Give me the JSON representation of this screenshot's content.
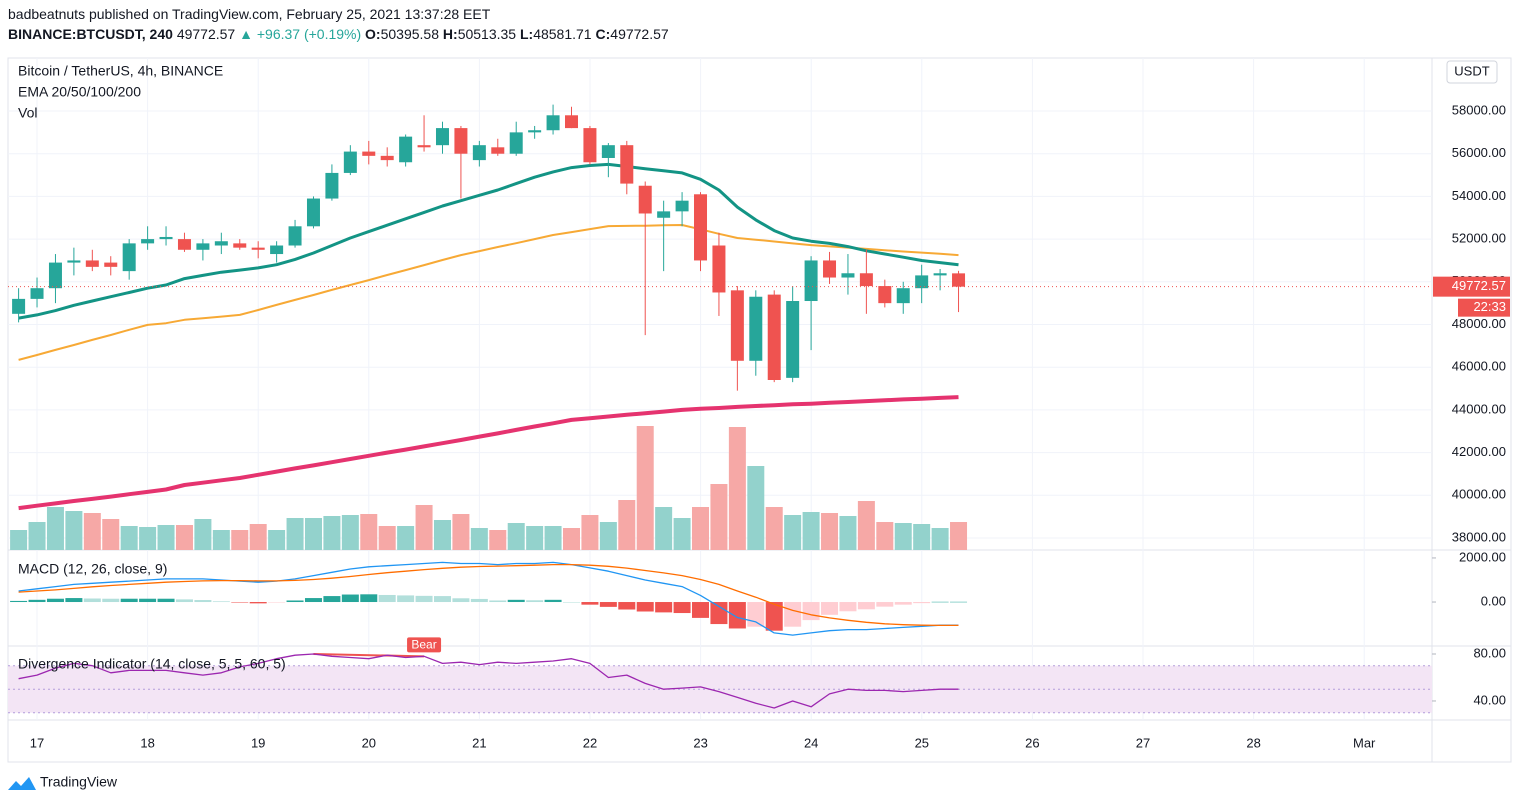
{
  "header": {
    "publisher": "badbeatnuts published on TradingView.com, February 25, 2021 13:37:28 EET",
    "symbol": "BINANCE:BTCUSDT, 240",
    "change": "▲ +96.37 (+0.19%)",
    "ohlc_labels": [
      "O:",
      "H:",
      "L:",
      "C:"
    ]
  },
  "footer": {
    "brand": "TradingView"
  },
  "chart_data": [
    {
      "type": "candlestick",
      "title": "Bitcoin / TetherUS, 4h, BINANCE",
      "indicator_label": "EMA 20/50/100/200",
      "volume_label": "Vol",
      "currency": "USDT",
      "countdown": "22:33",
      "up_color": "#26a69a",
      "down_color": "#ef5350",
      "ohlc": [
        [
          48500,
          49700,
          48100,
          49200
        ],
        [
          49200,
          50200,
          48800,
          49700
        ],
        [
          49700,
          51300,
          49000,
          50900
        ],
        [
          50900,
          51600,
          50300,
          51000
        ],
        [
          51000,
          51500,
          50500,
          50700
        ],
        [
          50900,
          51200,
          50300,
          50700
        ],
        [
          50500,
          52000,
          50100,
          51800
        ],
        [
          51800,
          52600,
          51500,
          52000
        ],
        [
          52000,
          52600,
          51700,
          52100
        ],
        [
          52000,
          52300,
          51400,
          51500
        ],
        [
          51500,
          52000,
          51000,
          51800
        ],
        [
          51700,
          52300,
          51300,
          51900
        ],
        [
          51800,
          52000,
          51500,
          51600
        ],
        [
          51600,
          51900,
          51100,
          51500
        ],
        [
          51300,
          51900,
          50900,
          51700
        ],
        [
          51700,
          52900,
          51600,
          52600
        ],
        [
          52600,
          54000,
          52500,
          53900
        ],
        [
          53900,
          55500,
          53800,
          55100
        ],
        [
          55100,
          56400,
          55000,
          56100
        ],
        [
          56100,
          56600,
          55500,
          55900
        ],
        [
          55900,
          56300,
          55400,
          55700
        ],
        [
          55600,
          56900,
          55400,
          56800
        ],
        [
          56400,
          57800,
          56100,
          56300
        ],
        [
          56400,
          57500,
          56000,
          57200
        ],
        [
          57200,
          57300,
          53900,
          56000
        ],
        [
          55700,
          56600,
          55400,
          56400
        ],
        [
          56300,
          56700,
          55900,
          56000
        ],
        [
          56000,
          57500,
          55900,
          57000
        ],
        [
          57000,
          57300,
          56700,
          57100
        ],
        [
          57100,
          58300,
          56900,
          57800
        ],
        [
          57800,
          58200,
          57200,
          57200
        ],
        [
          57200,
          57300,
          55500,
          55600
        ],
        [
          55800,
          56500,
          54900,
          56400
        ],
        [
          56400,
          56600,
          54100,
          54600
        ],
        [
          54500,
          54700,
          47500,
          53200
        ],
        [
          53000,
          53800,
          50500,
          53300
        ],
        [
          53300,
          54200,
          52600,
          53800
        ],
        [
          54100,
          54200,
          50500,
          51000
        ],
        [
          51700,
          52300,
          48400,
          49500
        ],
        [
          49600,
          49800,
          44900,
          46300
        ],
        [
          46300,
          49600,
          45600,
          49300
        ],
        [
          49400,
          49600,
          45300,
          45400
        ],
        [
          45500,
          49800,
          45300,
          49100
        ],
        [
          49100,
          51200,
          46800,
          51000
        ],
        [
          51000,
          51400,
          49900,
          50200
        ],
        [
          50200,
          51300,
          49400,
          50400
        ],
        [
          50400,
          51500,
          48500,
          49800
        ],
        [
          49800,
          50100,
          48800,
          49000
        ],
        [
          49000,
          50000,
          48500,
          49700
        ],
        [
          49700,
          50800,
          49000,
          50300
        ],
        [
          50300,
          50600,
          49600,
          50400
        ],
        [
          50395.58,
          50513.35,
          48581.71,
          49772.57
        ]
      ],
      "series": [
        {
          "color": "#e5336f",
          "width": 4,
          "values": [
            39400,
            39510,
            39620,
            39730,
            39830,
            39940,
            40050,
            40160,
            40270,
            40480,
            40590,
            40700,
            40810,
            40960,
            41110,
            41260,
            41400,
            41550,
            41700,
            41850,
            42000,
            42140,
            42290,
            42440,
            42590,
            42750,
            42900,
            43060,
            43220,
            43370,
            43530,
            43610,
            43690,
            43770,
            43840,
            43920,
            44000,
            44050,
            44090,
            44140,
            44180,
            44220,
            44260,
            44290,
            44330,
            44370,
            44410,
            44450,
            44490,
            44520,
            44560,
            44600
          ]
        },
        {
          "color": "#f7a935",
          "width": 2,
          "values": [
            46340,
            46570,
            46810,
            47040,
            47280,
            47510,
            47750,
            47980,
            48060,
            48220,
            48290,
            48370,
            48450,
            48680,
            48920,
            49150,
            49380,
            49620,
            49850,
            50080,
            50320,
            50550,
            50780,
            51020,
            51250,
            51440,
            51630,
            51810,
            52000,
            52190,
            52330,
            52470,
            52610,
            52620,
            52630,
            52650,
            52660,
            52460,
            52250,
            52050,
            51970,
            51890,
            51800,
            51720,
            51660,
            51600,
            51540,
            51480,
            51420,
            51370,
            51310,
            51250
          ]
        },
        {
          "color": "#139485",
          "width": 3,
          "values": [
            48300,
            48450,
            48650,
            48900,
            49100,
            49300,
            49500,
            49700,
            49850,
            50150,
            50300,
            50450,
            50550,
            50650,
            50800,
            51050,
            51350,
            51700,
            52050,
            52350,
            52650,
            52950,
            53250,
            53550,
            53800,
            54050,
            54300,
            54600,
            54900,
            55150,
            55350,
            55450,
            55500,
            55400,
            55300,
            55200,
            55100,
            54800,
            54300,
            53500,
            52900,
            52400,
            52050,
            51900,
            51800,
            51650,
            51450,
            51300,
            51150,
            51000,
            50900,
            50800
          ]
        }
      ],
      "volume": {
        "up_color": "#93d2cc",
        "down_color": "#f6a8a6",
        "vlim": [
          0,
          12.8
        ],
        "values": [
          2.0,
          2.8,
          4.3,
          3.9,
          3.7,
          3.1,
          2.4,
          2.3,
          2.5,
          2.5,
          3.1,
          2.0,
          2.0,
          2.6,
          2.0,
          3.2,
          3.2,
          3.4,
          3.5,
          3.6,
          2.4,
          2.4,
          4.5,
          3.0,
          3.6,
          2.2,
          2.0,
          2.7,
          2.4,
          2.4,
          2.2,
          3.5,
          2.8,
          5.0,
          12.4,
          4.3,
          3.2,
          4.3,
          6.6,
          12.3,
          8.4,
          4.3,
          3.5,
          3.8,
          3.7,
          3.4,
          4.9,
          2.8,
          2.7,
          2.6,
          2.2,
          2.8
        ]
      },
      "ylim": [
        37530,
        60390
      ],
      "yticks": [
        {
          "value": 38000,
          "label": "38000.00"
        },
        {
          "value": 40000,
          "label": "40000.00"
        },
        {
          "value": 42000,
          "label": "42000.00"
        },
        {
          "value": 44000,
          "label": "44000.00"
        },
        {
          "value": 46000,
          "label": "46000.00"
        },
        {
          "value": 48000,
          "label": "48000.00"
        },
        {
          "value": 50000,
          "label": "50000.00"
        },
        {
          "value": 52000,
          "label": "52000.00"
        },
        {
          "value": 54000,
          "label": "54000.00"
        },
        {
          "value": 56000,
          "label": "56000.00"
        },
        {
          "value": 58000,
          "label": "58000.00"
        }
      ],
      "grid": true,
      "time_labels": [
        "17",
        "18",
        "19",
        "20",
        "21",
        "22",
        "23",
        "24",
        "25",
        "26",
        "27",
        "28",
        "Mar"
      ]
    },
    {
      "type": "macd",
      "title": "MACD (12, 26, close, 9)",
      "series": [
        {
          "color": "#2196f3",
          "values": [
            500,
            600,
            700,
            800,
            850,
            900,
            950,
            1000,
            1050,
            1050,
            1050,
            1000,
            950,
            900,
            950,
            1050,
            1200,
            1350,
            1500,
            1600,
            1650,
            1700,
            1750,
            1800,
            1750,
            1750,
            1700,
            1750,
            1750,
            1800,
            1700,
            1550,
            1400,
            1200,
            1000,
            850,
            700,
            300,
            -200,
            -700,
            -900,
            -1400,
            -1500,
            -1400,
            -1300,
            -1250,
            -1250,
            -1200,
            -1150,
            -1100,
            -1050,
            -1050
          ]
        },
        {
          "color": "#ff6d00",
          "values": [
            450,
            500,
            550,
            620,
            690,
            750,
            800,
            850,
            900,
            930,
            960,
            970,
            970,
            960,
            960,
            980,
            1020,
            1080,
            1160,
            1250,
            1330,
            1400,
            1470,
            1530,
            1580,
            1610,
            1630,
            1650,
            1670,
            1700,
            1700,
            1670,
            1620,
            1540,
            1430,
            1320,
            1200,
            1020,
            800,
            500,
            220,
            -100,
            -380,
            -580,
            -720,
            -830,
            -920,
            -990,
            -1030,
            -1050,
            -1060,
            -1060
          ]
        }
      ],
      "histogram": {
        "colors": [
          "#26a69a",
          "#b2dfdb",
          "#ffcdd2",
          "#ef5350"
        ],
        "values": [
          50,
          100,
          150,
          180,
          160,
          150,
          150,
          150,
          150,
          120,
          90,
          30,
          -20,
          -60,
          -10,
          70,
          180,
          270,
          340,
          350,
          320,
          300,
          280,
          270,
          170,
          140,
          70,
          100,
          80,
          100,
          0,
          -120,
          -220,
          -340,
          -430,
          -470,
          -500,
          -720,
          -1000,
          -1200,
          -1120,
          -1300,
          -1120,
          -820,
          -580,
          -420,
          -330,
          -210,
          -120,
          -50,
          10,
          10
        ]
      },
      "ylim": [
        -1950,
        2270
      ],
      "yticks": [
        {
          "value": 2000,
          "label": "2000.00"
        },
        {
          "value": 0,
          "label": "0.00"
        }
      ]
    },
    {
      "type": "line",
      "title": "Divergence Indicator (14, close, 5, 5, 60, 5)",
      "series": [
        {
          "color": "#9c27b0",
          "values": [
            59,
            62,
            68,
            72,
            70,
            64,
            66,
            66,
            66,
            64,
            62,
            64,
            69,
            72,
            76,
            79,
            80,
            78,
            77,
            76,
            79,
            77,
            78,
            72,
            73,
            71,
            73,
            72,
            73,
            74,
            76,
            72,
            60,
            62,
            55,
            50,
            51,
            52,
            48,
            43,
            38,
            34,
            40,
            35,
            46,
            50,
            49,
            49,
            48,
            49,
            50,
            50
          ]
        }
      ],
      "levels": [
        70,
        50,
        30
      ],
      "band_color": "#f3e5f5",
      "annotations": [
        "Bear"
      ],
      "annotation_color": "#ef5350",
      "ylim": [
        25.5,
        85.1
      ],
      "yticks": [
        {
          "value": 80,
          "label": "80.00"
        },
        {
          "value": 40,
          "label": "40.00"
        }
      ]
    }
  ]
}
